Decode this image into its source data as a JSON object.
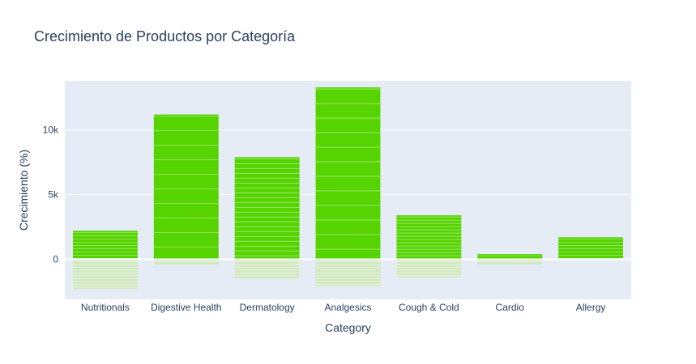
{
  "chart_data": {
    "type": "bar",
    "title": "Crecimiento de Productos por Categoría",
    "xlabel": "Category",
    "ylabel": "Crecimiento (%)",
    "categories": [
      "Nutritionals",
      "Digestive Health",
      "Dermatology",
      "Analgesics",
      "Cough & Cold",
      "Cardio",
      "Allergy"
    ],
    "y_ticks": [
      {
        "value": 0,
        "label": "0"
      },
      {
        "value": 5000,
        "label": "5k"
      },
      {
        "value": 10000,
        "label": "10k"
      }
    ],
    "ylim": [
      -3100,
      13800
    ],
    "grid": true,
    "bar_color": "#55d400",
    "negative_color": "#cfe8c0",
    "plot_background": "#e5ecf6",
    "values": [
      {
        "positive": 2200,
        "negative": -2300
      },
      {
        "positive": 11200,
        "negative": -400
      },
      {
        "positive": 7900,
        "negative": -1500
      },
      {
        "positive": 13300,
        "negative": -2100
      },
      {
        "positive": 3400,
        "negative": -1400
      },
      {
        "positive": 400,
        "negative": -400
      },
      {
        "positive": 1700,
        "negative": 0
      }
    ]
  }
}
